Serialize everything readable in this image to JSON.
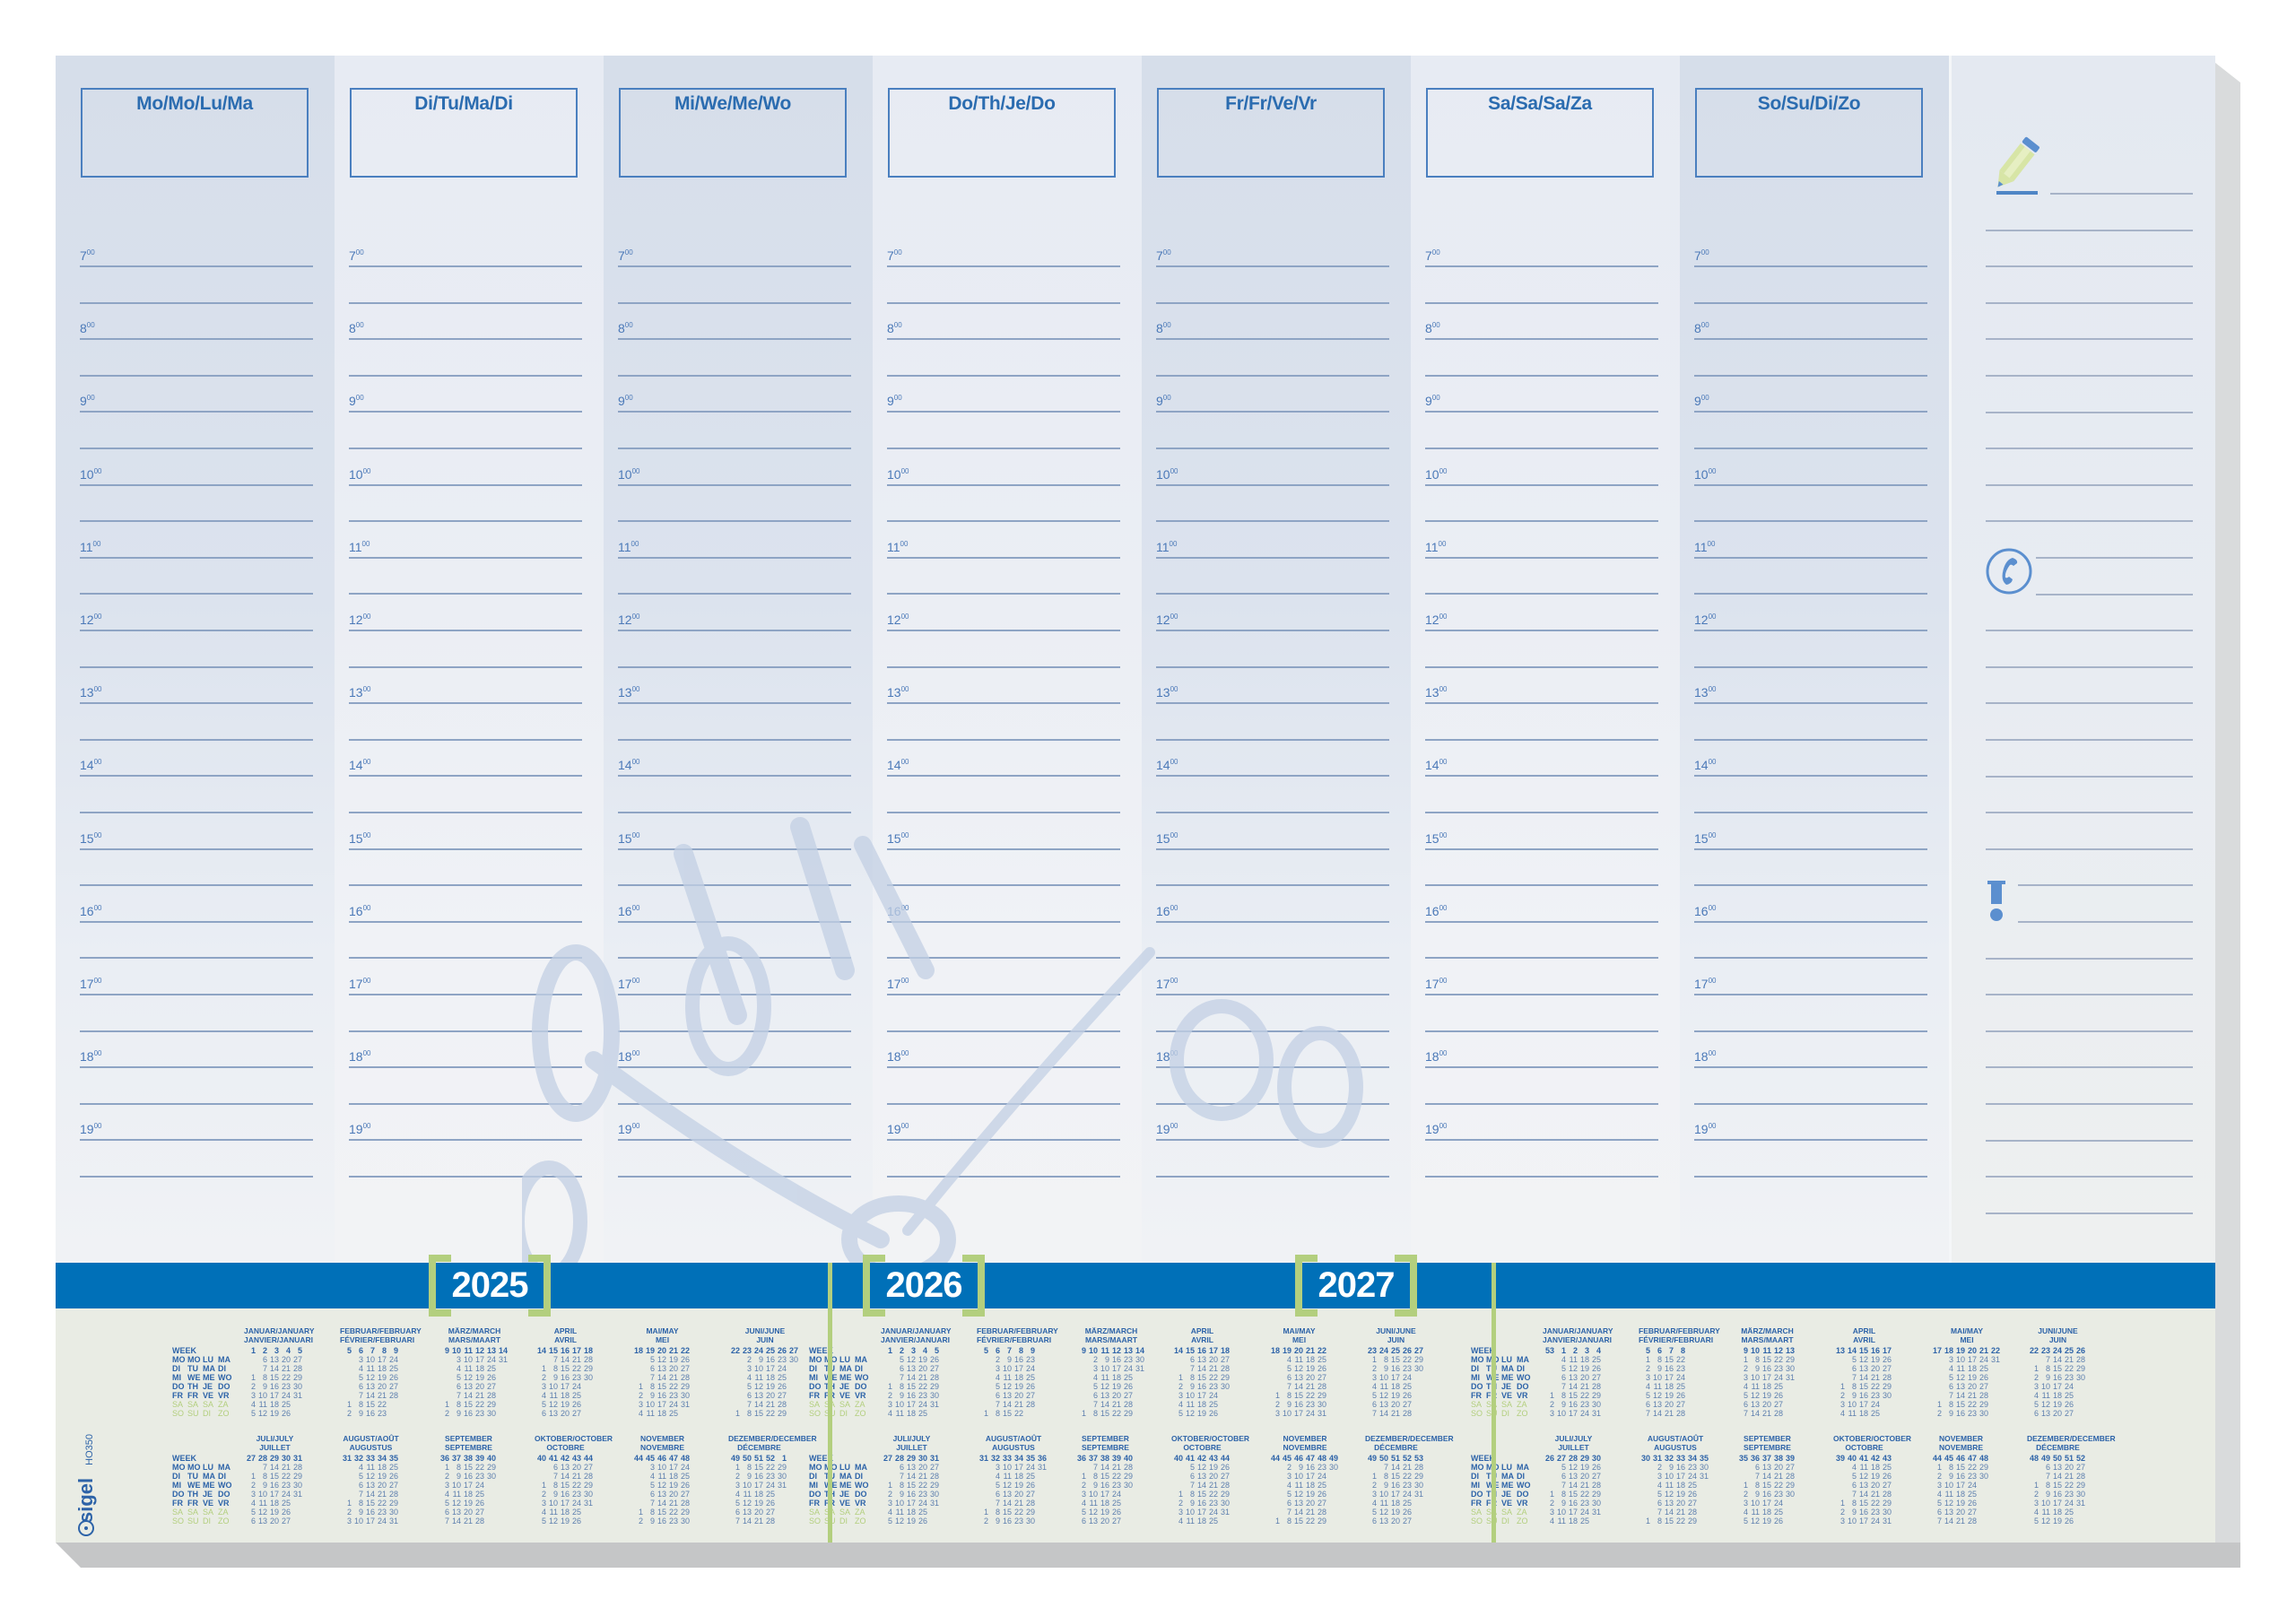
{
  "brand": {
    "name": "sigel",
    "product_code": "HO350"
  },
  "days": [
    {
      "label": "Mo/Mo/Lu/Ma"
    },
    {
      "label": "Di/Tu/Ma/Di"
    },
    {
      "label": "Mi/We/Me/Wo"
    },
    {
      "label": "Do/Th/Je/Do"
    },
    {
      "label": "Fr/Fr/Ve/Vr"
    },
    {
      "label": "Sa/Sa/Sa/Za"
    },
    {
      "label": "So/Su/Di/Zo"
    }
  ],
  "hours": [
    {
      "h": "7",
      "m": "00"
    },
    {
      "h": "8",
      "m": "00"
    },
    {
      "h": "9",
      "m": "00"
    },
    {
      "h": "10",
      "m": "00"
    },
    {
      "h": "11",
      "m": "00"
    },
    {
      "h": "12",
      "m": "00"
    },
    {
      "h": "13",
      "m": "00"
    },
    {
      "h": "14",
      "m": "00"
    },
    {
      "h": "15",
      "m": "00"
    },
    {
      "h": "16",
      "m": "00"
    },
    {
      "h": "17",
      "m": "00"
    },
    {
      "h": "18",
      "m": "00"
    },
    {
      "h": "19",
      "m": "00"
    }
  ],
  "notes": {
    "icons": [
      "pencil-icon",
      "phone-icon",
      "exclamation-icon"
    ]
  },
  "colors": {
    "band_blue": "#0070b8",
    "accent_green": "#b3cf7e",
    "text_blue": "#2b6cb0",
    "line_blue": "#8ea4c4"
  },
  "calendar": {
    "week_label": "WEEK",
    "weekday_rows": [
      [
        "MO",
        "MO",
        "LU",
        "MA"
      ],
      [
        "DI",
        "TU",
        "MA",
        "DI"
      ],
      [
        "MI",
        "WE",
        "ME",
        "WO"
      ],
      [
        "DO",
        "TH",
        "JE",
        "DO"
      ],
      [
        "FR",
        "FR",
        "VE",
        "VR"
      ],
      [
        "SA",
        "SA",
        "SA",
        "ZA"
      ],
      [
        "SO",
        "SU",
        "DI",
        "ZO"
      ]
    ],
    "month_titles": [
      [
        "JANUAR/JANUARY",
        "JANVIER/JANUARI"
      ],
      [
        "FEBRUAR/FEBRUARY",
        "FÉVRIER/FEBRUARI"
      ],
      [
        "MÄRZ/MARCH",
        "MARS/MAART"
      ],
      [
        "APRIL",
        "AVRIL"
      ],
      [
        "MAI/MAY",
        "MEI"
      ],
      [
        "JUNI/JUNE",
        "JUIN"
      ],
      [
        "JULI/JULY",
        "JUILLET"
      ],
      [
        "AUGUST/AOÛT",
        "AUGUSTUS"
      ],
      [
        "SEPTEMBER",
        "SEPTEMBRE"
      ],
      [
        "OKTOBER/OCTOBER",
        "OCTOBRE"
      ],
      [
        "NOVEMBER",
        "NOVEMBRE"
      ],
      [
        "DEZEMBER/DECEMBER",
        "DÉCEMBRE"
      ]
    ],
    "years": [
      {
        "year": "2025",
        "months": [
          {
            "weeks": [
              "1",
              "2",
              "3",
              "4",
              "5"
            ],
            "rows": [
              ",6,13,20,27",
              ",7,14,21,28",
              "1,8,15,22,29",
              "2,9,16,23,30",
              "3,10,17,24,31",
              "4,11,18,25,",
              "5,12,19,26,"
            ]
          },
          {
            "weeks": [
              "5",
              "6",
              "7",
              "8",
              "9"
            ],
            "rows": [
              ",3,10,17,24",
              ",4,11,18,25",
              ",5,12,19,26",
              ",6,13,20,27",
              ",7,14,21,28",
              "1,8,15,22,",
              "2,9,16,23,"
            ]
          },
          {
            "weeks": [
              "9",
              "10",
              "11",
              "12",
              "13",
              "14"
            ],
            "rows": [
              ",3,10,17,24,31",
              ",4,11,18,25,",
              ",5,12,19,26,",
              ",6,13,20,27,",
              ",7,14,21,28,",
              "1,8,15,22,29,",
              "2,9,16,23,30,"
            ]
          },
          {
            "weeks": [
              "14",
              "15",
              "16",
              "17",
              "18"
            ],
            "rows": [
              ",7,14,21,28",
              "1,8,15,22,29",
              "2,9,16,23,30",
              "3,10,17,24,",
              "4,11,18,25,",
              "5,12,19,26,",
              "6,13,20,27,"
            ]
          },
          {
            "weeks": [
              "18",
              "19",
              "20",
              "21",
              "22"
            ],
            "rows": [
              ",5,12,19,26",
              ",6,13,20,27",
              ",7,14,21,28",
              "1,8,15,22,29",
              "2,9,16,23,30",
              "3,10,17,24,31",
              "4,11,18,25,"
            ]
          },
          {
            "weeks": [
              "22",
              "23",
              "24",
              "25",
              "26",
              "27"
            ],
            "rows": [
              ",2,9,16,23,30",
              ",3,10,17,24,",
              ",4,11,18,25,",
              ",5,12,19,26,",
              ",6,13,20,27,",
              ",7,14,21,28,",
              "1,8,15,22,29,"
            ]
          },
          {
            "weeks": [
              "27",
              "28",
              "29",
              "30",
              "31"
            ],
            "rows": [
              ",7,14,21,28",
              "1,8,15,22,29",
              "2,9,16,23,30",
              "3,10,17,24,31",
              "4,11,18,25,",
              "5,12,19,26,",
              "6,13,20,27,"
            ]
          },
          {
            "weeks": [
              "31",
              "32",
              "33",
              "34",
              "35"
            ],
            "rows": [
              ",4,11,18,25",
              ",5,12,19,26",
              ",6,13,20,27",
              ",7,14,21,28",
              "1,8,15,22,29",
              "2,9,16,23,30",
              "3,10,17,24,31"
            ]
          },
          {
            "weeks": [
              "36",
              "37",
              "38",
              "39",
              "40"
            ],
            "rows": [
              "1,8,15,22,29",
              "2,9,16,23,30",
              "3,10,17,24,",
              "4,11,18,25,",
              "5,12,19,26,",
              "6,13,20,27,",
              "7,14,21,28,"
            ]
          },
          {
            "weeks": [
              "40",
              "41",
              "42",
              "43",
              "44"
            ],
            "rows": [
              ",6,13,20,27",
              ",7,14,21,28",
              "1,8,15,22,29",
              "2,9,16,23,30",
              "3,10,17,24,31",
              "4,11,18,25,",
              "5,12,19,26,"
            ]
          },
          {
            "weeks": [
              "44",
              "45",
              "46",
              "47",
              "48"
            ],
            "rows": [
              ",3,10,17,24",
              ",4,11,18,25",
              ",5,12,19,26",
              ",6,13,20,27",
              ",7,14,21,28",
              "1,8,15,22,29",
              "2,9,16,23,30"
            ]
          },
          {
            "weeks": [
              "49",
              "50",
              "51",
              "52",
              "1"
            ],
            "rows": [
              "1,8,15,22,29",
              "2,9,16,23,30",
              "3,10,17,24,31",
              "4,11,18,25,",
              "5,12,19,26,",
              "6,13,20,27,",
              "7,14,21,28,"
            ]
          }
        ]
      },
      {
        "year": "2026",
        "months": [
          {
            "weeks": [
              "1",
              "2",
              "3",
              "4",
              "5"
            ],
            "rows": [
              ",5,12,19,26",
              ",6,13,20,27",
              ",7,14,21,28",
              "1,8,15,22,29",
              "2,9,16,23,30",
              "3,10,17,24,31",
              "4,11,18,25,"
            ]
          },
          {
            "weeks": [
              "5",
              "6",
              "7",
              "8",
              "9"
            ],
            "rows": [
              ",2,9,16,23",
              ",3,10,17,24",
              ",4,11,18,25",
              ",5,12,19,26",
              ",6,13,20,27",
              ",7,14,21,28",
              "1,8,15,22,"
            ]
          },
          {
            "weeks": [
              "9",
              "10",
              "11",
              "12",
              "13",
              "14"
            ],
            "rows": [
              ",2,9,16,23,30",
              ",3,10,17,24,31",
              ",4,11,18,25,",
              ",5,12,19,26,",
              ",6,13,20,27,",
              ",7,14,21,28,",
              "1,8,15,22,29,"
            ]
          },
          {
            "weeks": [
              "14",
              "15",
              "16",
              "17",
              "18"
            ],
            "rows": [
              ",6,13,20,27",
              ",7,14,21,28",
              "1,8,15,22,29",
              "2,9,16,23,30",
              "3,10,17,24,",
              "4,11,18,25,",
              "5,12,19,26,"
            ]
          },
          {
            "weeks": [
              "18",
              "19",
              "20",
              "21",
              "22"
            ],
            "rows": [
              ",4,11,18,25",
              ",5,12,19,26",
              ",6,13,20,27",
              ",7,14,21,28",
              "1,8,15,22,29",
              "2,9,16,23,30",
              "3,10,17,24,31"
            ]
          },
          {
            "weeks": [
              "23",
              "24",
              "25",
              "26",
              "27"
            ],
            "rows": [
              "1,8,15,22,29",
              "2,9,16,23,30",
              "3,10,17,24,",
              "4,11,18,25,",
              "5,12,19,26,",
              "6,13,20,27,",
              "7,14,21,28,"
            ]
          },
          {
            "weeks": [
              "27",
              "28",
              "29",
              "30",
              "31"
            ],
            "rows": [
              ",6,13,20,27",
              ",7,14,21,28",
              "1,8,15,22,29",
              "2,9,16,23,30",
              "3,10,17,24,31",
              "4,11,18,25,",
              "5,12,19,26,"
            ]
          },
          {
            "weeks": [
              "31",
              "32",
              "33",
              "34",
              "35",
              "36"
            ],
            "rows": [
              ",3,10,17,24,31",
              ",4,11,18,25,",
              ",5,12,19,26,",
              ",6,13,20,27,",
              ",7,14,21,28,",
              "1,8,15,22,29,",
              "2,9,16,23,30,"
            ]
          },
          {
            "weeks": [
              "36",
              "37",
              "38",
              "39",
              "40"
            ],
            "rows": [
              ",7,14,21,28",
              "1,8,15,22,29",
              "2,9,16,23,30",
              "3,10,17,24,",
              "4,11,18,25,",
              "5,12,19,26,",
              "6,13,20,27,"
            ]
          },
          {
            "weeks": [
              "40",
              "41",
              "42",
              "43",
              "44"
            ],
            "rows": [
              ",5,12,19,26",
              ",6,13,20,27",
              ",7,14,21,28",
              "1,8,15,22,29",
              "2,9,16,23,30",
              "3,10,17,24,31",
              "4,11,18,25,"
            ]
          },
          {
            "weeks": [
              "44",
              "45",
              "46",
              "47",
              "48",
              "49"
            ],
            "rows": [
              ",2,9,16,23,30",
              ",3,10,17,24,",
              ",4,11,18,25,",
              ",5,12,19,26,",
              ",6,13,20,27,",
              ",7,14,21,28,",
              "1,8,15,22,29,"
            ]
          },
          {
            "weeks": [
              "49",
              "50",
              "51",
              "52",
              "53"
            ],
            "rows": [
              ",7,14,21,28",
              "1,8,15,22,29",
              "2,9,16,23,30",
              "3,10,17,24,31",
              "4,11,18,25,",
              "5,12,19,26,",
              "6,13,20,27,"
            ]
          }
        ]
      },
      {
        "year": "2027",
        "months": [
          {
            "weeks": [
              "53",
              "1",
              "2",
              "3",
              "4"
            ],
            "rows": [
              ",4,11,18,25",
              ",5,12,19,26",
              ",6,13,20,27",
              ",7,14,21,28",
              "1,8,15,22,29",
              "2,9,16,23,30",
              "3,10,17,24,31"
            ]
          },
          {
            "weeks": [
              "5",
              "6",
              "7",
              "8"
            ],
            "rows": [
              "1,8,15,22",
              "2,9,16,23",
              "3,10,17,24",
              "4,11,18,25",
              "5,12,19,26",
              "6,13,20,27",
              "7,14,21,28"
            ]
          },
          {
            "weeks": [
              "9",
              "10",
              "11",
              "12",
              "13"
            ],
            "rows": [
              "1,8,15,22,29",
              "2,9,16,23,30",
              "3,10,17,24,31",
              "4,11,18,25,",
              "5,12,19,26,",
              "6,13,20,27,",
              "7,14,21,28,"
            ]
          },
          {
            "weeks": [
              "13",
              "14",
              "15",
              "16",
              "17"
            ],
            "rows": [
              ",5,12,19,26",
              ",6,13,20,27",
              ",7,14,21,28",
              "1,8,15,22,29",
              "2,9,16,23,30",
              "3,10,17,24,",
              "4,11,18,25,"
            ]
          },
          {
            "weeks": [
              "17",
              "18",
              "19",
              "20",
              "21",
              "22"
            ],
            "rows": [
              ",3,10,17,24,31",
              ",4,11,18,25,",
              ",5,12,19,26,",
              ",6,13,20,27,",
              ",7,14,21,28,",
              "1,8,15,22,29,",
              "2,9,16,23,30,"
            ]
          },
          {
            "weeks": [
              "22",
              "23",
              "24",
              "25",
              "26"
            ],
            "rows": [
              ",7,14,21,28",
              "1,8,15,22,29",
              "2,9,16,23,30",
              "3,10,17,24,",
              "4,11,18,25,",
              "5,12,19,26,",
              "6,13,20,27,"
            ]
          },
          {
            "weeks": [
              "26",
              "27",
              "28",
              "29",
              "30"
            ],
            "rows": [
              ",5,12,19,26",
              ",6,13,20,27",
              ",7,14,21,28",
              "1,8,15,22,29",
              "2,9,16,23,30",
              "3,10,17,24,31",
              "4,11,18,25,"
            ]
          },
          {
            "weeks": [
              "30",
              "31",
              "32",
              "33",
              "34",
              "35"
            ],
            "rows": [
              ",2,9,16,23,30",
              ",3,10,17,24,31",
              ",4,11,18,25,",
              ",5,12,19,26,",
              ",6,13,20,27,",
              ",7,14,21,28,",
              "1,8,15,22,29,"
            ]
          },
          {
            "weeks": [
              "35",
              "36",
              "37",
              "38",
              "39"
            ],
            "rows": [
              ",6,13,20,27",
              ",7,14,21,28",
              "1,8,15,22,29",
              "2,9,16,23,30",
              "3,10,17,24,",
              "4,11,18,25,",
              "5,12,19,26,"
            ]
          },
          {
            "weeks": [
              "39",
              "40",
              "41",
              "42",
              "43"
            ],
            "rows": [
              ",4,11,18,25",
              ",5,12,19,26",
              ",6,13,20,27",
              ",7,14,21,28",
              "1,8,15,22,29",
              "2,9,16,23,30",
              "3,10,17,24,31"
            ]
          },
          {
            "weeks": [
              "44",
              "45",
              "46",
              "47",
              "48"
            ],
            "rows": [
              "1,8,15,22,29",
              "2,9,16,23,30",
              "3,10,17,24,",
              "4,11,18,25,",
              "5,12,19,26,",
              "6,13,20,27,",
              "7,14,21,28,"
            ]
          },
          {
            "weeks": [
              "48",
              "49",
              "50",
              "51",
              "52"
            ],
            "rows": [
              ",6,13,20,27",
              ",7,14,21,28",
              "1,8,15,22,29",
              "2,9,16,23,30",
              "3,10,17,24,31",
              "4,11,18,25,",
              "5,12,19,26,"
            ]
          }
        ]
      }
    ]
  }
}
